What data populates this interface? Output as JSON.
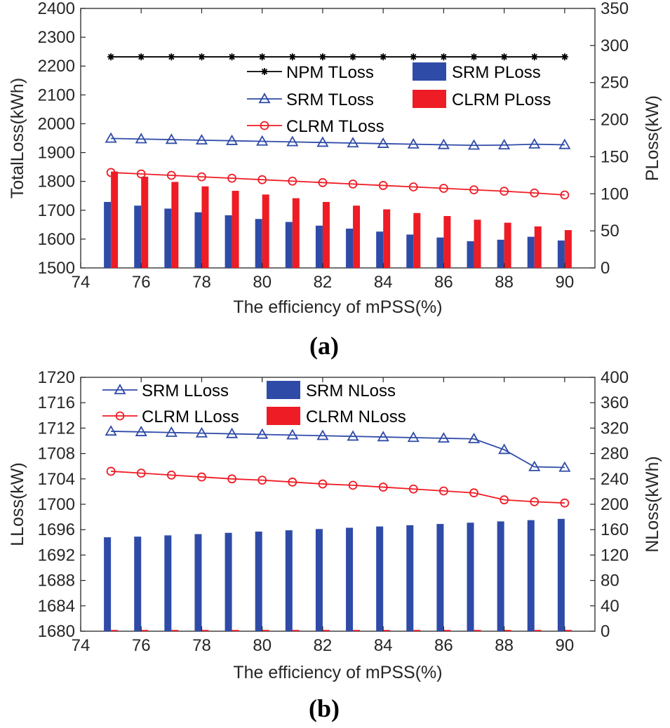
{
  "chart_data": [
    {
      "type": "bar",
      "caption": "(a)",
      "xlabel": "The efficiency of mPSS(%)",
      "ylabel": "TotalLoss(kWh)",
      "y2label": "PLoss(kW)",
      "xlim": [
        74,
        91
      ],
      "ylim": [
        1500,
        2400
      ],
      "y2lim": [
        0,
        350
      ],
      "xticks": [
        "74",
        "76",
        "78",
        "80",
        "82",
        "84",
        "86",
        "88",
        "90"
      ],
      "yticks": [
        "1500",
        "1600",
        "1700",
        "1800",
        "1900",
        "2000",
        "2100",
        "2200",
        "2300",
        "2400"
      ],
      "y2ticks": [
        "0",
        "50",
        "100",
        "150",
        "200",
        "250",
        "300",
        "350"
      ],
      "x": [
        75,
        76,
        77,
        78,
        79,
        80,
        81,
        82,
        83,
        84,
        85,
        86,
        87,
        88,
        89,
        90
      ],
      "legend_position": "upper-right",
      "bar_series": [
        {
          "name": "SRM PLoss",
          "axis": "right",
          "color": "#2F4BA8",
          "values": [
            89,
            84,
            80,
            75,
            71,
            66,
            62,
            57,
            53,
            49,
            45,
            41,
            36,
            38,
            42,
            37
          ]
        },
        {
          "name": "CLRM PLoss",
          "axis": "right",
          "color": "#EE1C25",
          "values": [
            130,
            123,
            116,
            110,
            104,
            99,
            94,
            89,
            84,
            79,
            74,
            70,
            65,
            61,
            56,
            51
          ]
        }
      ],
      "line_series": [
        {
          "name": "NPM TLoss",
          "axis": "left",
          "color": "#000000",
          "marker": "star",
          "values": [
            2232,
            2232,
            2232,
            2232,
            2232,
            2232,
            2232,
            2232,
            2232,
            2232,
            2232,
            2232,
            2232,
            2232,
            2232,
            2232
          ]
        },
        {
          "name": "SRM TLoss",
          "axis": "left",
          "color": "#2F4BA8",
          "marker": "triangle",
          "values": [
            1949,
            1947,
            1945,
            1943,
            1941,
            1939,
            1937,
            1935,
            1933,
            1931,
            1929,
            1927,
            1925,
            1926,
            1929,
            1927
          ]
        },
        {
          "name": "CLRM TLoss",
          "axis": "left",
          "color": "#EE1C25",
          "marker": "circle",
          "values": [
            1831,
            1826,
            1821,
            1816,
            1811,
            1806,
            1801,
            1796,
            1791,
            1786,
            1781,
            1776,
            1771,
            1766,
            1760,
            1753
          ]
        }
      ]
    },
    {
      "type": "bar",
      "caption": "(b)",
      "xlabel": "The efficiency of mPSS(%)",
      "ylabel": "LLoss(kW)",
      "y2label": "NLoss(kWh)",
      "xlim": [
        74,
        91
      ],
      "ylim": [
        1680,
        1720
      ],
      "y2lim": [
        0,
        400
      ],
      "xticks": [
        "74",
        "76",
        "78",
        "80",
        "82",
        "84",
        "86",
        "88",
        "90"
      ],
      "yticks": [
        "1680",
        "1684",
        "1688",
        "1692",
        "1696",
        "1700",
        "1704",
        "1708",
        "1712",
        "1716",
        "1720"
      ],
      "y2ticks": [
        "0",
        "40",
        "80",
        "120",
        "160",
        "200",
        "240",
        "280",
        "320",
        "360",
        "400"
      ],
      "x": [
        75,
        76,
        77,
        78,
        79,
        80,
        81,
        82,
        83,
        84,
        85,
        86,
        87,
        88,
        89,
        90
      ],
      "legend_position": "top",
      "bar_series": [
        {
          "name": "SRM NLoss",
          "axis": "right",
          "color": "#2F4BA8",
          "values": [
            148,
            149,
            151,
            153,
            155,
            157,
            159,
            161,
            163,
            165,
            167,
            169,
            171,
            173,
            175,
            177
          ]
        },
        {
          "name": "CLRM NLoss",
          "axis": "right",
          "color": "#EE1C25",
          "values": [
            2,
            2,
            2,
            2,
            2,
            2,
            2,
            2,
            2,
            2,
            2,
            2,
            2,
            2,
            2,
            2
          ]
        }
      ],
      "line_series": [
        {
          "name": "SRM LLoss",
          "axis": "left",
          "color": "#2F4BA8",
          "marker": "triangle",
          "values": [
            1711.5,
            1711.4,
            1711.3,
            1711.2,
            1711.1,
            1711.0,
            1710.9,
            1710.8,
            1710.7,
            1710.6,
            1710.5,
            1710.4,
            1710.3,
            1708.6,
            1705.9,
            1705.8
          ]
        },
        {
          "name": "CLRM LLoss",
          "axis": "left",
          "color": "#EE1C25",
          "marker": "circle",
          "values": [
            1705.2,
            1704.9,
            1704.6,
            1704.3,
            1704.0,
            1703.8,
            1703.5,
            1703.2,
            1703.0,
            1702.7,
            1702.4,
            1702.1,
            1701.8,
            1700.7,
            1700.4,
            1700.2
          ]
        }
      ]
    }
  ]
}
